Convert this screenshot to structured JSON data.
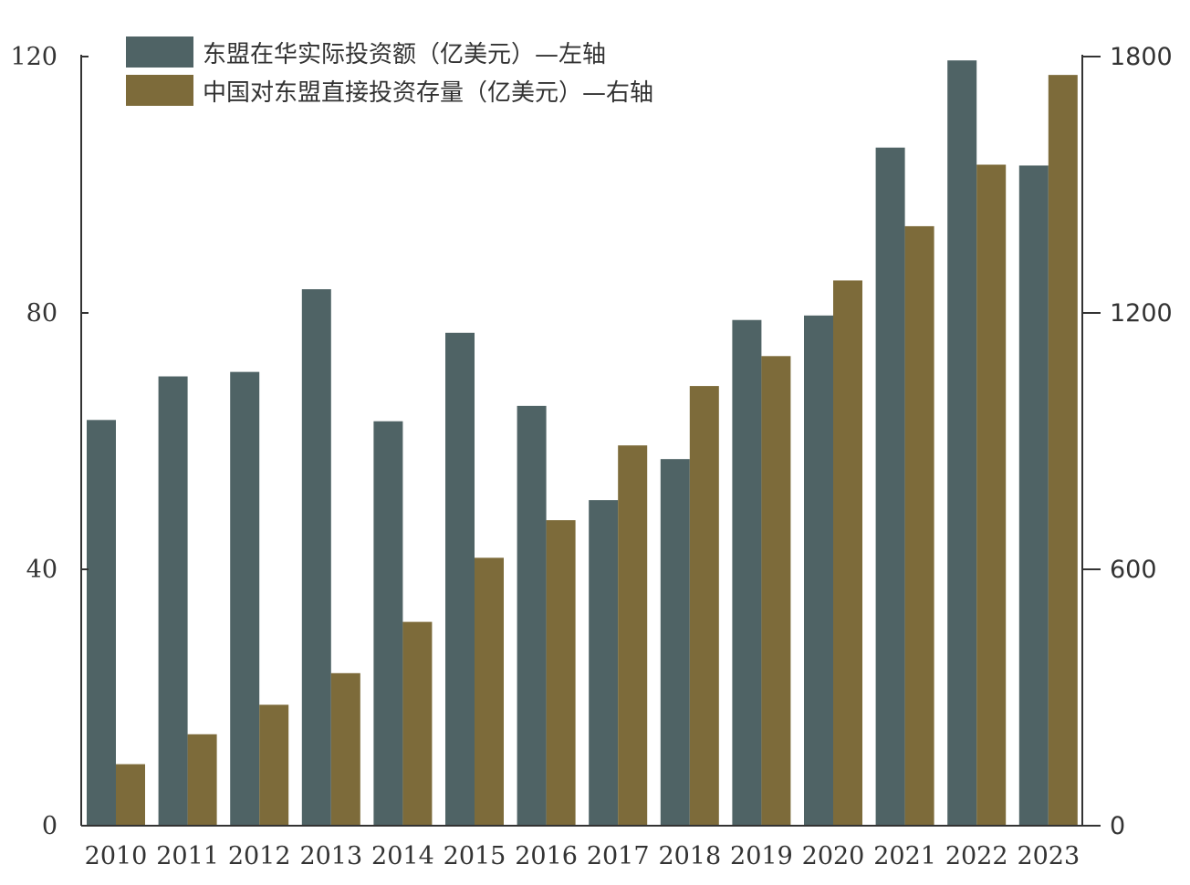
{
  "chart_data": {
    "type": "bar",
    "categories": [
      "2010",
      "2011",
      "2012",
      "2013",
      "2014",
      "2015",
      "2016",
      "2017",
      "2018",
      "2019",
      "2020",
      "2021",
      "2022",
      "2023"
    ],
    "series": [
      {
        "name": "东盟在华实际投资额（亿美元）—左轴",
        "axis": "left",
        "color": "#4f6365",
        "values": [
          63.3,
          70.1,
          70.8,
          83.7,
          63.1,
          76.9,
          65.5,
          50.8,
          57.2,
          78.9,
          79.6,
          105.8,
          119.4,
          103.0
        ]
      },
      {
        "name": "中国对东盟直接投资存量（亿美元）—右轴",
        "axis": "right",
        "color": "#7d6b3a",
        "values": [
          144,
          214,
          283,
          357,
          477,
          627,
          715,
          890,
          1029,
          1099,
          1276,
          1403,
          1547,
          1757
        ]
      }
    ],
    "y_left": {
      "ylim": [
        0,
        120
      ],
      "ticks": [
        0,
        40,
        80,
        120
      ]
    },
    "y_right": {
      "ylim": [
        0,
        1800
      ],
      "ticks": [
        0,
        600,
        1200,
        1800
      ]
    },
    "legend": {
      "placement": "top-left"
    },
    "grid": false
  }
}
